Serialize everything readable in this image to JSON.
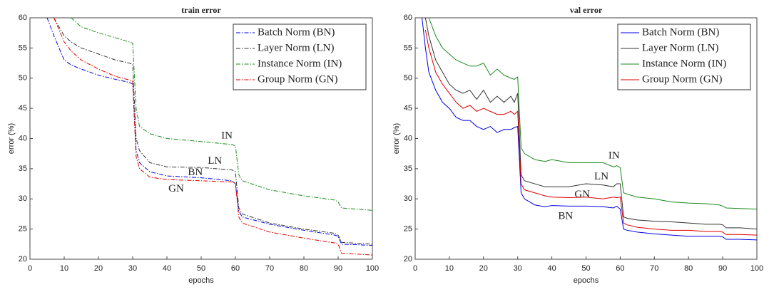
{
  "chart_data": [
    {
      "type": "line",
      "title": "train error",
      "xlabel": "epochs",
      "ylabel": "error (%)",
      "xlim": [
        0,
        100
      ],
      "ylim": [
        20,
        60
      ],
      "xticks": [
        0,
        10,
        20,
        30,
        40,
        50,
        60,
        70,
        80,
        90,
        100
      ],
      "yticks": [
        20,
        25,
        30,
        35,
        40,
        45,
        50,
        55,
        60
      ],
      "linestyle": "dashdot",
      "legend": "upper right",
      "x": [
        5,
        7,
        10,
        12,
        15,
        20,
        25,
        29,
        30,
        31,
        32,
        35,
        40,
        50,
        59,
        60,
        61,
        62,
        70,
        80,
        89,
        90,
        91,
        100
      ],
      "series": [
        {
          "name": "Batch Norm (BN)",
          "color": "#0000e0",
          "values": [
            60,
            57,
            53,
            52.2,
            51.5,
            50.5,
            49.8,
            49.3,
            49,
            38,
            36,
            34.5,
            33.8,
            33.5,
            33,
            32.5,
            28,
            27,
            25.8,
            24.8,
            24,
            23.8,
            22.5,
            22.3
          ]
        },
        {
          "name": "Layer Norm (LN)",
          "color": "#333333",
          "values": [
            null,
            60,
            57,
            56,
            55,
            54,
            53,
            52.5,
            52.3,
            40,
            38,
            36,
            35.3,
            35.2,
            34.8,
            34.5,
            28.5,
            27.5,
            26,
            25,
            24.3,
            24,
            22.8,
            22.5
          ]
        },
        {
          "name": "Instance Norm (IN)",
          "color": "#1a8a1a",
          "values": [
            null,
            null,
            null,
            60,
            58.5,
            57.5,
            56.7,
            56,
            55.8,
            45,
            42,
            40.8,
            40,
            39.5,
            39,
            38.8,
            34,
            33,
            31.5,
            30.5,
            29.8,
            29.5,
            28.5,
            28.1
          ]
        },
        {
          "name": "Group Norm (GN)",
          "color": "#e00000",
          "values": [
            null,
            60,
            56,
            54.5,
            53,
            51.5,
            50.3,
            49.7,
            49.5,
            37,
            35,
            33.6,
            33.2,
            33,
            32.8,
            32.6,
            27,
            26,
            24.5,
            23.5,
            22.7,
            22.5,
            21,
            20.7
          ]
        }
      ],
      "annotations": [
        {
          "text": "IN",
          "x": 57.5,
          "y": 40.4
        },
        {
          "text": "LN",
          "x": 54,
          "y": 36.2
        },
        {
          "text": "BN",
          "x": 48.3,
          "y": 34.3
        },
        {
          "text": "GN",
          "x": 42.7,
          "y": 31.6
        }
      ]
    },
    {
      "type": "line",
      "title": "val error",
      "xlabel": "epochs",
      "ylabel": "error (%)",
      "xlim": [
        0,
        100
      ],
      "ylim": [
        20,
        60
      ],
      "xticks": [
        0,
        10,
        20,
        30,
        40,
        50,
        60,
        70,
        80,
        90,
        100
      ],
      "yticks": [
        20,
        25,
        30,
        35,
        40,
        45,
        50,
        55,
        60
      ],
      "linestyle": "solid",
      "legend": "upper right",
      "x": [
        2,
        3,
        4,
        6,
        8,
        10,
        12,
        14,
        16,
        18,
        20,
        22,
        24,
        26,
        28,
        29,
        30,
        31,
        32,
        35,
        38,
        40,
        45,
        50,
        55,
        58,
        59,
        60,
        61,
        62,
        65,
        70,
        75,
        80,
        85,
        89,
        90,
        91,
        95,
        100
      ],
      "series": [
        {
          "name": "Batch Norm (BN)",
          "color": "#0000e0",
          "values": [
            60,
            55,
            51,
            48,
            46,
            45,
            43.5,
            43,
            43,
            42,
            41.5,
            42,
            41,
            41.5,
            41.5,
            41.8,
            42,
            31,
            30,
            29,
            28.7,
            28.9,
            28.8,
            28.8,
            28.7,
            28.5,
            28.8,
            28.3,
            25,
            24.8,
            24.5,
            24.2,
            24,
            23.8,
            23.8,
            23.8,
            23.7,
            23.3,
            23.3,
            23.2
          ]
        },
        {
          "name": "Layer Norm (LN)",
          "color": "#333333",
          "values": [
            null,
            60,
            57,
            53,
            51,
            49,
            48,
            47.5,
            48,
            46.5,
            48,
            46,
            47,
            46,
            47,
            46,
            47.5,
            34,
            33,
            32.5,
            32,
            32,
            32,
            32.5,
            32.3,
            32,
            32.5,
            32.5,
            27,
            26.8,
            26.5,
            26.3,
            26.2,
            26,
            25.8,
            25.8,
            25.7,
            25.2,
            25.2,
            25
          ]
        },
        {
          "name": "Instance Norm (IN)",
          "color": "#1a8a1a",
          "values": [
            null,
            null,
            60,
            57,
            55,
            54,
            53,
            52.5,
            52,
            52,
            52.5,
            50.5,
            51.5,
            50.5,
            50,
            49.8,
            50.2,
            38.5,
            37.5,
            36.5,
            36.2,
            36.5,
            36,
            36,
            36,
            35.3,
            35.5,
            35.2,
            31,
            30.8,
            30.3,
            30,
            29.5,
            29.3,
            29.2,
            29,
            28.8,
            28.5,
            28.4,
            28.3
          ]
        },
        {
          "name": "Group Norm (GN)",
          "color": "#e00000",
          "values": [
            null,
            58,
            55,
            51,
            49,
            47.5,
            46,
            45,
            45.5,
            44.5,
            45,
            44.5,
            44,
            44,
            44.5,
            44,
            44.5,
            32.5,
            31.5,
            31,
            30.5,
            30.3,
            30.2,
            30.3,
            30,
            30.3,
            30.2,
            30.3,
            26,
            25.7,
            25.3,
            25,
            24.8,
            24.8,
            24.6,
            24.6,
            24.5,
            24.1,
            24.1,
            24
          ]
        }
      ],
      "annotations": [
        {
          "text": "IN",
          "x": 58.2,
          "y": 37.1
        },
        {
          "text": "LN",
          "x": 54.5,
          "y": 33.6
        },
        {
          "text": "GN",
          "x": 48.9,
          "y": 30.7
        },
        {
          "text": "BN",
          "x": 44,
          "y": 27.1
        }
      ]
    }
  ]
}
